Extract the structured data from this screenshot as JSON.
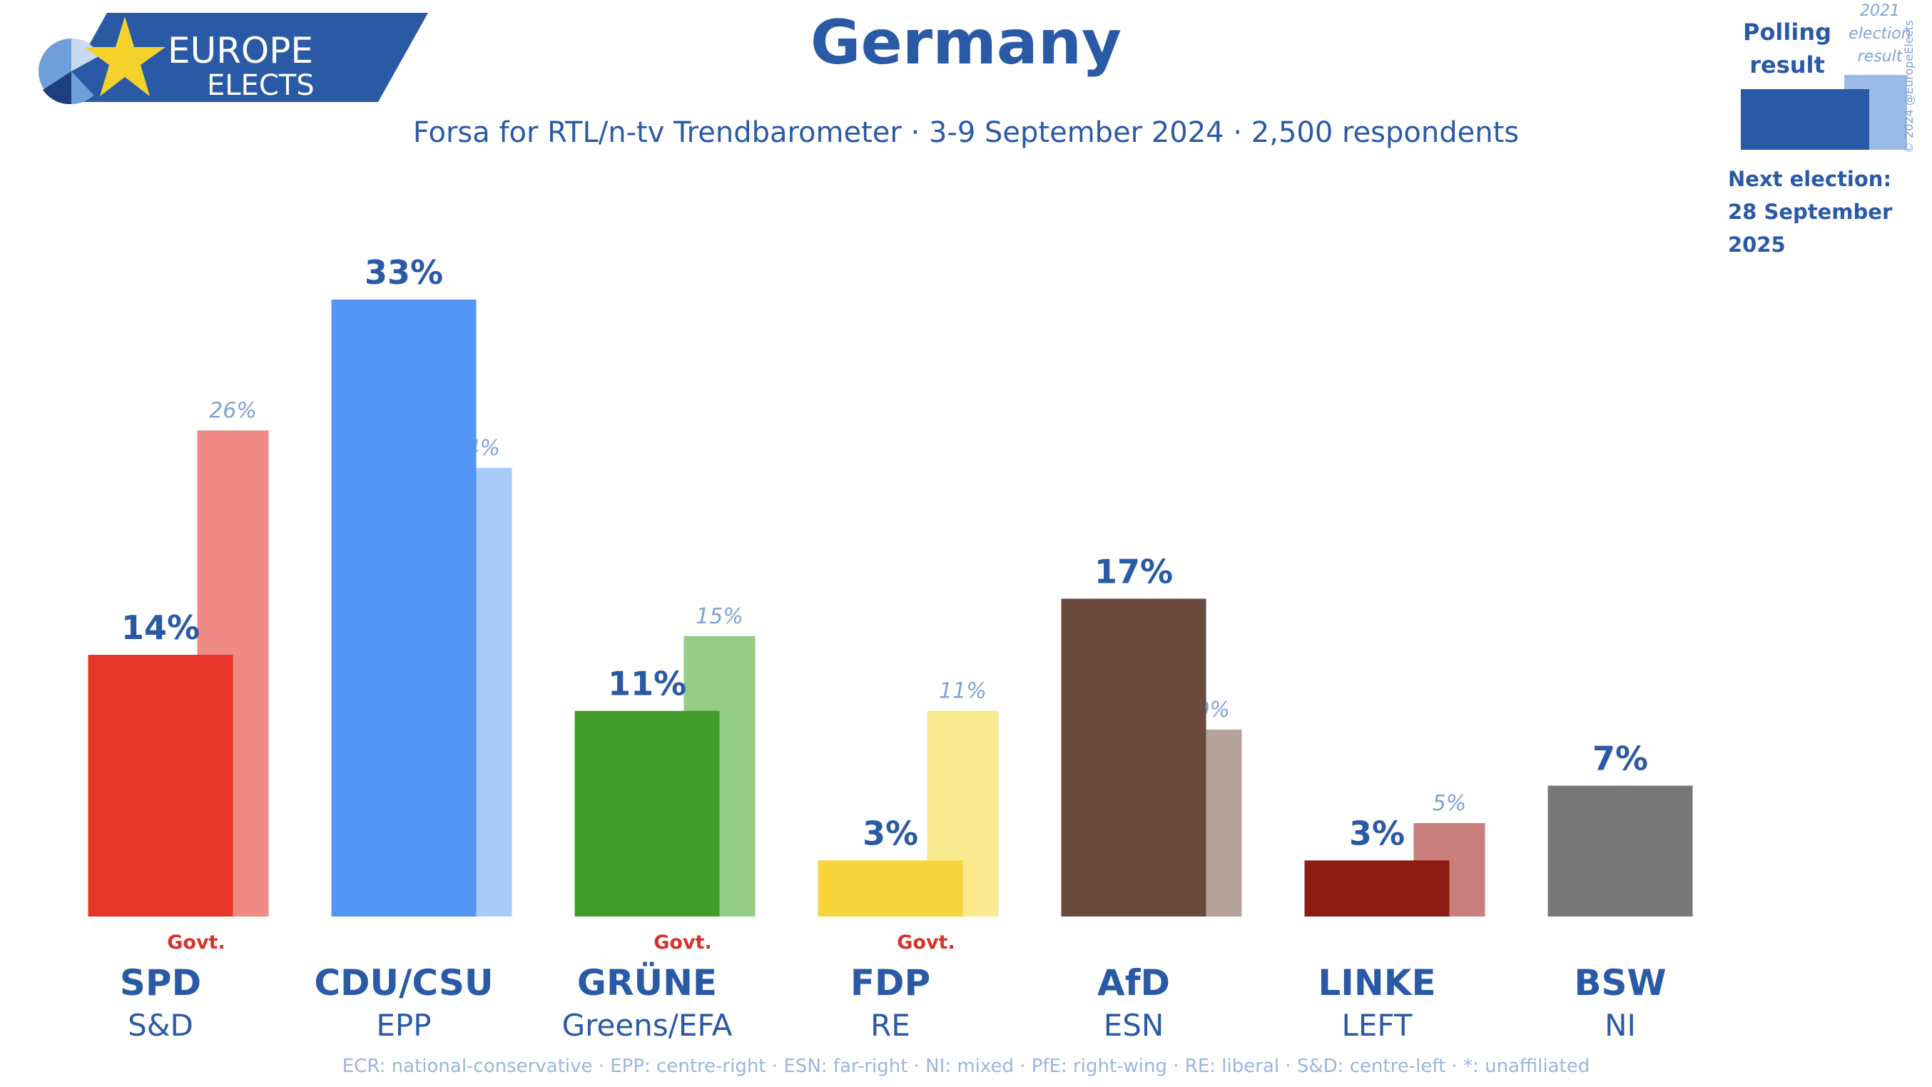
{
  "header": {
    "logo_line1": "EUROPE",
    "logo_line2": "ELECTS",
    "title": "Germany",
    "subtitle": "Forsa for RTL/n-tv Trendbarometer · 3-9 September 2024 · 2,500 respondents"
  },
  "legend": {
    "poll_label": "Polling result",
    "election_label": "2021 election result",
    "copyright": "© 2024 @EuropeElects",
    "next_election_label": "Next election:",
    "next_election_date": "28 September 2025"
  },
  "footer": {
    "note": "ECR: national-conservative · EPP: centre-right · ESN: far-right · NI: mixed · PfE: right-wing · RE: liberal · S&D: centre-left · *: unaffiliated"
  },
  "chart_data": {
    "type": "bar",
    "title": "Germany",
    "ylim": [
      0,
      33
    ],
    "grid": false,
    "gov_label": "Govt.",
    "categories": [
      "SPD",
      "CDU/CSU",
      "GRÜNE",
      "FDP",
      "AfD",
      "LINKE",
      "BSW"
    ],
    "groups": [
      "S&D",
      "EPP",
      "Greens/EFA",
      "RE",
      "ESN",
      "LEFT",
      "NI"
    ],
    "series": [
      {
        "name": "Polling result",
        "values": [
          14,
          33,
          11,
          3,
          17,
          3,
          7
        ],
        "labels": [
          "14%",
          "33%",
          "11%",
          "3%",
          "17%",
          "3%",
          "7%"
        ]
      },
      {
        "name": "2021 election result",
        "values": [
          26,
          24,
          15,
          11,
          10,
          5,
          null
        ],
        "labels": [
          "26%",
          "24%",
          "15%",
          "11%",
          "10%",
          "5%",
          ""
        ]
      }
    ],
    "government": [
      true,
      false,
      true,
      true,
      false,
      false,
      false
    ],
    "colors": [
      "#e8352a",
      "#5396f6",
      "#449c2c",
      "#f7d33c",
      "#6b4a3e",
      "#8c1b13",
      "#777777"
    ],
    "light_colors": [
      "#ef8a84",
      "#a8ccfa",
      "#94cc88",
      "#fbe98f",
      "#b4a29b",
      "#c97f7b",
      ""
    ]
  }
}
